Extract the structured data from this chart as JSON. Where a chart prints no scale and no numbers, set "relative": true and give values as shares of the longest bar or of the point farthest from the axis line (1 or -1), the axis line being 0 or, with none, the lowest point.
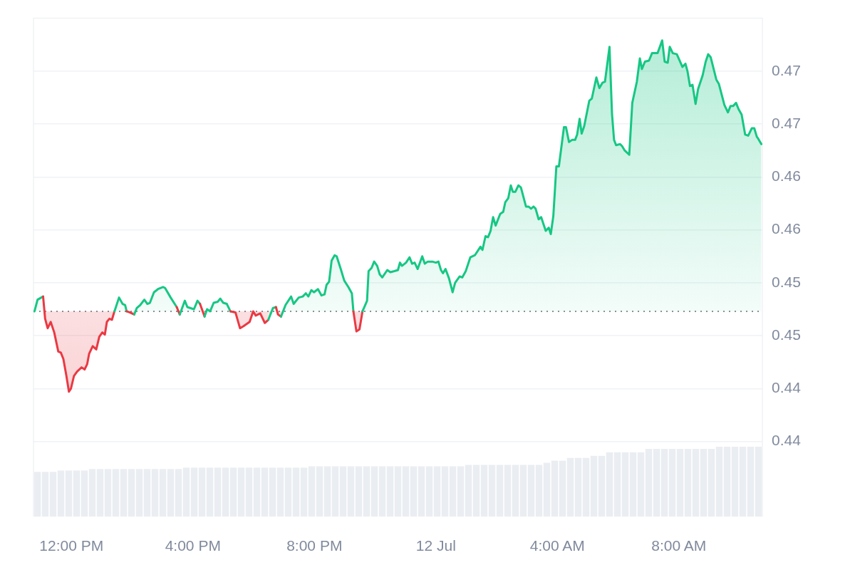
{
  "chart_data": [
    {
      "type": "area",
      "x": [
        "--07-11T10:47",
        "--07-11T10:53",
        "--07-11T11:04",
        "--07-11T11:08",
        "--07-11T11:13",
        "--07-11T11:19",
        "--07-11T11:26",
        "--07-11T11:34",
        "--07-11T11:39",
        "--07-11T11:44",
        "--07-11T11:50",
        "--07-11T11:55",
        "--07-11T11:59",
        "--07-11T12:05",
        "--07-11T12:11",
        "--07-11T12:20",
        "--07-11T12:26",
        "--07-11T12:31",
        "--07-11T12:35",
        "--07-11T12:42",
        "--07-11T12:49",
        "--07-11T12:55",
        "--07-11T13:01",
        "--07-11T13:06",
        "--07-11T13:10",
        "--07-11T13:15",
        "--07-11T13:20",
        "--07-11T13:25",
        "--07-11T13:34",
        "--07-11T13:41",
        "--07-11T13:46",
        "--07-11T13:49",
        "--07-11T13:55",
        "--07-11T14:04",
        "--07-11T14:09",
        "--07-11T14:16",
        "--07-11T14:24",
        "--07-11T14:30",
        "--07-11T14:35",
        "--07-11T14:43",
        "--07-11T14:51",
        "--07-11T15:01",
        "--07-11T15:05",
        "--07-11T15:16",
        "--07-11T15:28",
        "--07-11T15:34",
        "--07-11T15:44",
        "--07-11T15:49",
        "--07-11T16:02",
        "--07-11T16:09",
        "--07-11T16:14",
        "--07-11T16:23",
        "--07-11T16:28",
        "--07-11T16:34",
        "--07-11T16:41",
        "--07-11T16:49",
        "--07-11T16:54",
        "--07-11T17:00",
        "--07-11T17:07",
        "--07-11T17:14",
        "--07-11T17:24",
        "--07-11T17:33",
        "--07-11T17:40",
        "--07-11T17:52",
        "--07-11T17:59",
        "--07-11T18:04",
        "--07-11T18:13",
        "--07-11T18:22",
        "--07-11T18:29",
        "--07-11T18:38",
        "--07-11T18:44",
        "--07-11T18:48",
        "--07-11T18:54",
        "--07-11T19:03",
        "--07-11T19:14",
        "--07-11T19:19",
        "--07-11T19:29",
        "--07-11T19:37",
        "--07-11T19:43",
        "--07-11T19:48",
        "--07-11T19:54",
        "--07-11T19:59",
        "--07-11T20:07",
        "--07-11T20:14",
        "--07-11T20:20",
        "--07-11T20:24",
        "--07-11T20:29",
        "--07-11T20:34",
        "--07-11T20:40",
        "--07-11T20:44",
        "--07-11T20:52",
        "--07-11T20:59",
        "--07-11T21:07",
        "--07-11T21:14",
        "--07-11T21:17",
        "--07-11T21:23",
        "--07-11T21:29",
        "--07-11T21:35",
        "--07-11T21:44",
        "--07-11T21:47",
        "--07-11T21:53",
        "--07-11T21:58",
        "--07-11T22:04",
        "--07-11T22:09",
        "--07-11T22:14",
        "--07-11T22:24",
        "--07-11T22:30",
        "--07-11T22:38",
        "--07-11T22:45",
        "--07-11T22:49",
        "--07-11T22:53",
        "--07-11T23:01",
        "--07-11T23:08",
        "--07-11T23:13",
        "--07-11T23:18",
        "--07-11T23:24",
        "--07-11T23:33",
        "--07-11T23:38",
        "--07-11T23:44",
        "--07-11T23:53",
        "--07-12T00:00",
        "--07-12T00:05",
        "--07-12T00:10",
        "--07-12T00:14",
        "--07-12T00:19",
        "--07-12T00:26",
        "--07-12T00:33",
        "--07-12T00:38",
        "--07-12T00:47",
        "--07-12T00:52",
        "--07-12T00:59",
        "--07-12T01:08",
        "--07-12T01:17",
        "--07-12T01:28",
        "--07-12T01:32",
        "--07-12T01:38",
        "--07-12T01:43",
        "--07-12T01:48",
        "--07-12T01:53",
        "--07-12T01:58",
        "--07-12T02:07",
        "--07-12T02:13",
        "--07-12T02:17",
        "--07-12T02:23",
        "--07-12T02:28",
        "--07-12T02:32",
        "--07-12T02:37",
        "--07-12T02:43",
        "--07-12T02:48",
        "--07-12T02:58",
        "--07-12T03:03",
        "--07-12T03:08",
        "--07-12T03:13",
        "--07-12T03:17",
        "--07-12T03:23",
        "--07-12T03:28",
        "--07-12T03:37",
        "--07-12T03:43",
        "--07-12T03:47",
        "--07-12T03:52",
        "--07-12T03:58",
        "--07-12T04:03",
        "--07-12T04:13",
        "--07-12T04:17",
        "--07-12T04:23",
        "--07-12T04:29",
        "--07-12T04:35",
        "--07-12T04:39",
        "--07-12T04:44",
        "--07-12T04:48",
        "--07-12T04:53",
        "--07-12T05:03",
        "--07-12T05:08",
        "--07-12T05:17",
        "--07-12T05:23",
        "--07-12T05:29",
        "--07-12T05:34",
        "--07-12T05:43",
        "--07-12T05:48",
        "--07-12T05:52",
        "--07-12T05:56",
        "--07-12T06:04",
        "--07-12T06:08",
        "--07-12T06:13",
        "--07-12T06:22",
        "--07-12T06:28",
        "--07-12T06:37",
        "--07-12T06:43",
        "--07-12T06:47",
        "--07-12T06:53",
        "--07-12T07:01",
        "--07-12T07:07",
        "--07-12T07:18",
        "--07-12T07:27",
        "--07-12T07:32",
        "--07-12T07:38",
        "--07-12T07:42",
        "--07-12T07:48",
        "--07-12T07:56",
        "--07-12T08:07",
        "--07-12T08:13",
        "--07-12T08:17",
        "--07-12T08:22",
        "--07-12T08:27",
        "--07-12T08:33",
        "--07-12T08:38",
        "--07-12T08:47",
        "--07-12T08:53",
        "--07-12T08:58",
        "--07-12T09:03",
        "--07-12T09:14",
        "--07-12T09:19",
        "--07-12T09:30",
        "--07-12T09:37",
        "--07-12T09:42",
        "--07-12T09:47",
        "--07-12T09:53",
        "--07-12T09:58",
        "--07-12T10:04",
        "--07-12T10:11",
        "--07-12T10:17",
        "--07-12T10:24",
        "--07-12T10:29",
        "--07-12T10:34",
        "--07-12T10:37",
        "--07-12T10:43"
      ],
      "series": [
        {
          "color": "#16c784",
          "values": [
            0.4498,
            0.4509,
            0.4512,
            0.4491,
            0.4482,
            0.4488,
            0.4478,
            0.446,
            0.4459,
            0.4453,
            0.4437,
            0.4422,
            0.4425,
            0.4437,
            0.4441,
            0.4445,
            0.4443,
            0.4448,
            0.4458,
            0.4465,
            0.4462,
            0.4474,
            0.4478,
            0.4476,
            0.4488,
            0.4491,
            0.449,
            0.4498,
            0.4511,
            0.4505,
            0.4504,
            0.4498,
            0.4497,
            0.4495,
            0.4501,
            0.4504,
            0.4509,
            0.4505,
            0.4506,
            0.4516,
            0.4519,
            0.4521,
            0.452,
            0.4511,
            0.4502,
            0.4495,
            0.4508,
            0.4502,
            0.45,
            0.4508,
            0.4505,
            0.4493,
            0.45,
            0.4498,
            0.4506,
            0.4507,
            0.451,
            0.4506,
            0.4505,
            0.4498,
            0.4497,
            0.4482,
            0.4484,
            0.4488,
            0.4498,
            0.4494,
            0.4496,
            0.4487,
            0.449,
            0.4501,
            0.4502,
            0.4495,
            0.4493,
            0.4504,
            0.4512,
            0.4505,
            0.4511,
            0.4512,
            0.4515,
            0.4512,
            0.4518,
            0.4516,
            0.4519,
            0.4513,
            0.4514,
            0.4523,
            0.4526,
            0.4546,
            0.4551,
            0.455,
            0.4538,
            0.4527,
            0.4521,
            0.4515,
            0.4498,
            0.4479,
            0.4481,
            0.4498,
            0.4508,
            0.4536,
            0.4539,
            0.4545,
            0.4541,
            0.4533,
            0.453,
            0.4537,
            0.4535,
            0.4536,
            0.4537,
            0.4544,
            0.4541,
            0.4544,
            0.4549,
            0.4543,
            0.4544,
            0.4538,
            0.455,
            0.4543,
            0.4545,
            0.4545,
            0.4544,
            0.4545,
            0.4537,
            0.4534,
            0.4538,
            0.4529,
            0.4516,
            0.4525,
            0.4531,
            0.453,
            0.4536,
            0.4549,
            0.4551,
            0.4559,
            0.4556,
            0.4569,
            0.4568,
            0.4574,
            0.4587,
            0.4579,
            0.459,
            0.4592,
            0.4601,
            0.4605,
            0.4617,
            0.4611,
            0.4611,
            0.4617,
            0.4615,
            0.4597,
            0.4597,
            0.4595,
            0.4597,
            0.4595,
            0.4585,
            0.4587,
            0.4574,
            0.4577,
            0.4571,
            0.4588,
            0.4635,
            0.4635,
            0.4672,
            0.4672,
            0.4658,
            0.466,
            0.466,
            0.4665,
            0.468,
            0.4666,
            0.4673,
            0.4697,
            0.4699,
            0.4719,
            0.4709,
            0.4714,
            0.4715,
            0.4748,
            0.4684,
            0.466,
            0.4655,
            0.4656,
            0.4654,
            0.465,
            0.4646,
            0.4695,
            0.4715,
            0.4737,
            0.4727,
            0.4734,
            0.4735,
            0.4742,
            0.4742,
            0.4754,
            0.4734,
            0.4733,
            0.4748,
            0.4742,
            0.4741,
            0.4729,
            0.4732,
            0.4725,
            0.4711,
            0.4712,
            0.4694,
            0.4708,
            0.4721,
            0.4734,
            0.4741,
            0.4738,
            0.4717,
            0.4713,
            0.4693,
            0.4686,
            0.4692,
            0.4692,
            0.4695,
            0.4689,
            0.4684,
            0.4665,
            0.4664,
            0.4671,
            0.4671,
            0.4663,
            0.4661,
            0.4656
          ],
          "colors": [
            "#16c784",
            "#16c784",
            "#16c784",
            "#ea3943",
            "#ea3943",
            "#ea3943",
            "#ea3943",
            "#ea3943",
            "#ea3943",
            "#ea3943",
            "#ea3943",
            "#ea3943",
            "#ea3943",
            "#ea3943",
            "#ea3943",
            "#ea3943",
            "#ea3943",
            "#ea3943",
            "#ea3943",
            "#ea3943",
            "#ea3943",
            "#ea3943",
            "#ea3943",
            "#ea3943",
            "#ea3943",
            "#ea3943",
            "#ea3943",
            "#ea3943",
            "#16c784",
            "#16c784",
            "#16c784",
            "#16c784",
            "#ea3943",
            "#ea3943",
            "#16c784",
            "#16c784",
            "#16c784",
            "#16c784",
            "#16c784",
            "#16c784",
            "#16c784",
            "#16c784",
            "#16c784",
            "#16c784",
            "#16c784",
            "#ea3943",
            "#16c784",
            "#16c784",
            "#16c784",
            "#16c784",
            "#16c784",
            "#ea3943",
            "#16c784",
            "#16c784",
            "#16c784",
            "#16c784",
            "#16c784",
            "#16c784",
            "#16c784",
            "#16c784",
            "#ea3943",
            "#ea3943",
            "#ea3943",
            "#ea3943",
            "#ea3943",
            "#ea3943",
            "#ea3943",
            "#ea3943",
            "#ea3943",
            "#16c784",
            "#16c784",
            "#ea3943",
            "#ea3943",
            "#16c784",
            "#16c784",
            "#16c784",
            "#16c784",
            "#16c784",
            "#16c784",
            "#16c784",
            "#16c784",
            "#16c784",
            "#16c784",
            "#16c784",
            "#16c784",
            "#16c784",
            "#16c784",
            "#16c784",
            "#16c784",
            "#16c784",
            "#16c784",
            "#16c784",
            "#16c784",
            "#16c784",
            "#16c784",
            "#ea3943",
            "#ea3943",
            "#ea3943",
            "#16c784",
            "#16c784",
            "#16c784",
            "#16c784",
            "#16c784",
            "#16c784",
            "#16c784",
            "#16c784",
            "#16c784",
            "#16c784",
            "#16c784",
            "#16c784",
            "#16c784",
            "#16c784",
            "#16c784",
            "#16c784",
            "#16c784",
            "#16c784",
            "#16c784",
            "#16c784",
            "#16c784",
            "#16c784",
            "#16c784",
            "#16c784",
            "#16c784",
            "#16c784",
            "#16c784",
            "#16c784",
            "#16c784",
            "#16c784",
            "#16c784",
            "#16c784",
            "#16c784",
            "#16c784",
            "#16c784",
            "#16c784",
            "#16c784",
            "#16c784",
            "#16c784",
            "#16c784",
            "#16c784",
            "#16c784",
            "#16c784",
            "#16c784",
            "#16c784",
            "#16c784",
            "#16c784",
            "#16c784",
            "#16c784",
            "#16c784",
            "#16c784",
            "#16c784",
            "#16c784",
            "#16c784",
            "#16c784",
            "#16c784",
            "#16c784",
            "#16c784",
            "#16c784",
            "#16c784",
            "#16c784",
            "#16c784",
            "#16c784",
            "#16c784",
            "#16c784",
            "#16c784",
            "#16c784",
            "#16c784",
            "#16c784",
            "#16c784",
            "#16c784",
            "#16c784",
            "#16c784",
            "#16c784",
            "#16c784",
            "#16c784",
            "#16c784",
            "#16c784",
            "#16c784",
            "#16c784",
            "#16c784",
            "#16c784",
            "#16c784",
            "#16c784",
            "#16c784",
            "#16c784",
            "#16c784",
            "#16c784",
            "#16c784",
            "#16c784",
            "#16c784",
            "#16c784",
            "#16c784",
            "#16c784",
            "#16c784",
            "#16c784",
            "#16c784",
            "#16c784",
            "#16c784",
            "#16c784",
            "#16c784",
            "#16c784",
            "#16c784",
            "#16c784",
            "#16c784",
            "#16c784",
            "#16c784",
            "#16c784",
            "#16c784",
            "#16c784",
            "#16c784",
            "#16c784",
            "#16c784",
            "#16c784",
            "#16c784",
            "#16c784",
            "#16c784",
            "#16c784",
            "#16c784",
            "#16c784",
            "#16c784",
            "#16c784",
            "#16c784",
            "#16c784",
            "#16c784",
            "#16c784",
            "#16c784",
            "#16c784"
          ]
        }
      ],
      "xlim": [
        "--07-11T10:45",
        "--07-12T10:45"
      ],
      "xticks": [
        {
          "value": "--07-11T12:00",
          "label": "12:00 PM"
        },
        {
          "value": "--07-11T16:00",
          "label": "4:00 PM"
        },
        {
          "value": "--07-11T20:00",
          "label": "8:00 PM"
        },
        {
          "value": "--07-12T00:00",
          "label": "12 Jul"
        },
        {
          "value": "--07-12T04:00",
          "label": "4:00 AM"
        },
        {
          "value": "--07-12T08:00",
          "label": "8:00 AM"
        }
      ],
      "ylim": [
        0.4304,
        0.4775
      ],
      "yticks": [
        {
          "value": 0.4375,
          "label": "0.44"
        },
        {
          "value": 0.4425,
          "label": "0.44"
        },
        {
          "value": 0.4475,
          "label": "0.45"
        },
        {
          "value": 0.4525,
          "label": "0.45"
        },
        {
          "value": 0.4575,
          "label": "0.46"
        },
        {
          "value": 0.4625,
          "label": "0.46"
        },
        {
          "value": 0.4675,
          "label": "0.47"
        },
        {
          "value": 0.4725,
          "label": "0.47"
        }
      ],
      "grid": "y",
      "ref_lines": [
        {
          "axis": "y",
          "value": 0.4498,
          "color": "#8a8f99",
          "line_style": "dotted"
        }
      ]
    },
    {
      "type": "bar",
      "relative": true,
      "tick_labels": false,
      "color": "#eaedf1",
      "categories": [
        null,
        null,
        null,
        null,
        null,
        null,
        null,
        null,
        null,
        null,
        null,
        null,
        null,
        null,
        null,
        null,
        null,
        null,
        null,
        null,
        null,
        null,
        null,
        null,
        null,
        null,
        null,
        null,
        null,
        null,
        null,
        null,
        null,
        null,
        null,
        null,
        null,
        null,
        null,
        null,
        null,
        null,
        null,
        null,
        null,
        null,
        null,
        null,
        null,
        null,
        null,
        null,
        null,
        null,
        null,
        null,
        null,
        null,
        null,
        null,
        null,
        null,
        null,
        null,
        null,
        null,
        null,
        null,
        null,
        null,
        null,
        null,
        null,
        null,
        null,
        null,
        null,
        null,
        null,
        null,
        null,
        null,
        null,
        null,
        null,
        null,
        null,
        null,
        null,
        null,
        null,
        null,
        null
      ],
      "values": [
        0.64,
        0.64,
        0.64,
        0.66,
        0.66,
        0.66,
        0.66,
        0.68,
        0.68,
        0.68,
        0.68,
        0.68,
        0.68,
        0.68,
        0.68,
        0.68,
        0.68,
        0.68,
        0.68,
        0.7,
        0.7,
        0.7,
        0.7,
        0.7,
        0.7,
        0.7,
        0.7,
        0.7,
        0.7,
        0.7,
        0.7,
        0.7,
        0.7,
        0.7,
        0.7,
        0.72,
        0.72,
        0.72,
        0.72,
        0.72,
        0.72,
        0.72,
        0.72,
        0.72,
        0.72,
        0.72,
        0.72,
        0.72,
        0.72,
        0.72,
        0.72,
        0.72,
        0.72,
        0.72,
        0.72,
        0.74,
        0.74,
        0.74,
        0.74,
        0.74,
        0.74,
        0.74,
        0.74,
        0.74,
        0.74,
        0.77,
        0.8,
        0.8,
        0.84,
        0.84,
        0.84,
        0.87,
        0.87,
        0.92,
        0.92,
        0.92,
        0.92,
        0.92,
        0.97,
        0.97,
        0.97,
        0.97,
        0.97,
        0.97,
        0.97,
        0.97,
        0.97,
        1,
        1,
        1,
        1,
        1,
        1
      ]
    }
  ]
}
